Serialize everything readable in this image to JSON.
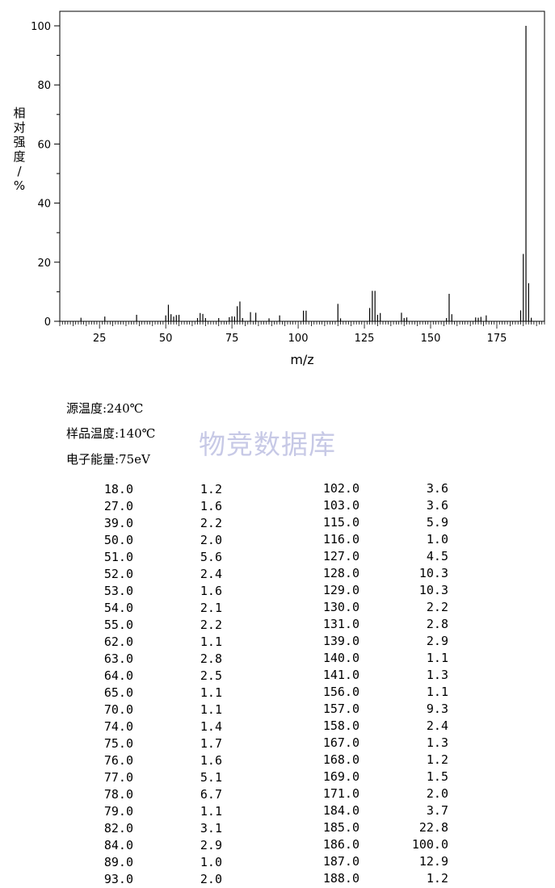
{
  "chart_data": {
    "type": "bar",
    "title": "",
    "xlabel": "m/z",
    "ylabel": "相对强度/%",
    "xlim": [
      10,
      193
    ],
    "ylim": [
      0,
      105
    ],
    "xticks": [
      25,
      50,
      75,
      100,
      125,
      150,
      175
    ],
    "yticks": [
      0,
      20,
      40,
      60,
      80,
      100
    ],
    "grid": false,
    "peaks": [
      [
        18.0,
        1.2
      ],
      [
        27.0,
        1.6
      ],
      [
        39.0,
        2.2
      ],
      [
        50.0,
        2.0
      ],
      [
        51.0,
        5.6
      ],
      [
        52.0,
        2.4
      ],
      [
        53.0,
        1.6
      ],
      [
        54.0,
        2.1
      ],
      [
        55.0,
        2.2
      ],
      [
        62.0,
        1.1
      ],
      [
        63.0,
        2.8
      ],
      [
        64.0,
        2.5
      ],
      [
        65.0,
        1.1
      ],
      [
        70.0,
        1.1
      ],
      [
        74.0,
        1.4
      ],
      [
        75.0,
        1.7
      ],
      [
        76.0,
        1.6
      ],
      [
        77.0,
        5.1
      ],
      [
        78.0,
        6.7
      ],
      [
        79.0,
        1.1
      ],
      [
        82.0,
        3.1
      ],
      [
        84.0,
        2.9
      ],
      [
        89.0,
        1.0
      ],
      [
        93.0,
        2.0
      ],
      [
        102.0,
        3.6
      ],
      [
        103.0,
        3.6
      ],
      [
        115.0,
        5.9
      ],
      [
        116.0,
        1.0
      ],
      [
        127.0,
        4.5
      ],
      [
        128.0,
        10.3
      ],
      [
        129.0,
        10.3
      ],
      [
        130.0,
        2.2
      ],
      [
        131.0,
        2.8
      ],
      [
        139.0,
        2.9
      ],
      [
        140.0,
        1.1
      ],
      [
        141.0,
        1.3
      ],
      [
        156.0,
        1.1
      ],
      [
        157.0,
        9.3
      ],
      [
        158.0,
        2.4
      ],
      [
        167.0,
        1.3
      ],
      [
        168.0,
        1.2
      ],
      [
        169.0,
        1.5
      ],
      [
        171.0,
        2.0
      ],
      [
        184.0,
        3.7
      ],
      [
        185.0,
        22.8
      ],
      [
        186.0,
        100.0
      ],
      [
        187.0,
        12.9
      ],
      [
        188.0,
        1.2
      ]
    ]
  },
  "conditions": {
    "source_temp": "源温度:240℃",
    "sample_temp": "样品温度:140℃",
    "electron_energy": "电子能量:75eV"
  },
  "watermark": "物竞数据库",
  "table": {
    "left": [
      [
        "18.0",
        "1.2"
      ],
      [
        "27.0",
        "1.6"
      ],
      [
        "39.0",
        "2.2"
      ],
      [
        "50.0",
        "2.0"
      ],
      [
        "51.0",
        "5.6"
      ],
      [
        "52.0",
        "2.4"
      ],
      [
        "53.0",
        "1.6"
      ],
      [
        "54.0",
        "2.1"
      ],
      [
        "55.0",
        "2.2"
      ],
      [
        "62.0",
        "1.1"
      ],
      [
        "63.0",
        "2.8"
      ],
      [
        "64.0",
        "2.5"
      ],
      [
        "65.0",
        "1.1"
      ],
      [
        "70.0",
        "1.1"
      ],
      [
        "74.0",
        "1.4"
      ],
      [
        "75.0",
        "1.7"
      ],
      [
        "76.0",
        "1.6"
      ],
      [
        "77.0",
        "5.1"
      ],
      [
        "78.0",
        "6.7"
      ],
      [
        "79.0",
        "1.1"
      ],
      [
        "82.0",
        "3.1"
      ],
      [
        "84.0",
        "2.9"
      ],
      [
        "89.0",
        "1.0"
      ],
      [
        "93.0",
        "2.0"
      ]
    ],
    "right": [
      [
        "102.0",
        "3.6"
      ],
      [
        "103.0",
        "3.6"
      ],
      [
        "115.0",
        "5.9"
      ],
      [
        "116.0",
        "1.0"
      ],
      [
        "127.0",
        "4.5"
      ],
      [
        "128.0",
        "10.3"
      ],
      [
        "129.0",
        "10.3"
      ],
      [
        "130.0",
        "2.2"
      ],
      [
        "131.0",
        "2.8"
      ],
      [
        "139.0",
        "2.9"
      ],
      [
        "140.0",
        "1.1"
      ],
      [
        "141.0",
        "1.3"
      ],
      [
        "156.0",
        "1.1"
      ],
      [
        "157.0",
        "9.3"
      ],
      [
        "158.0",
        "2.4"
      ],
      [
        "167.0",
        "1.3"
      ],
      [
        "168.0",
        "1.2"
      ],
      [
        "169.0",
        "1.5"
      ],
      [
        "171.0",
        "2.0"
      ],
      [
        "184.0",
        "3.7"
      ],
      [
        "185.0",
        "22.8"
      ],
      [
        "186.0",
        "100.0"
      ],
      [
        "187.0",
        "12.9"
      ],
      [
        "188.0",
        "1.2"
      ]
    ]
  }
}
